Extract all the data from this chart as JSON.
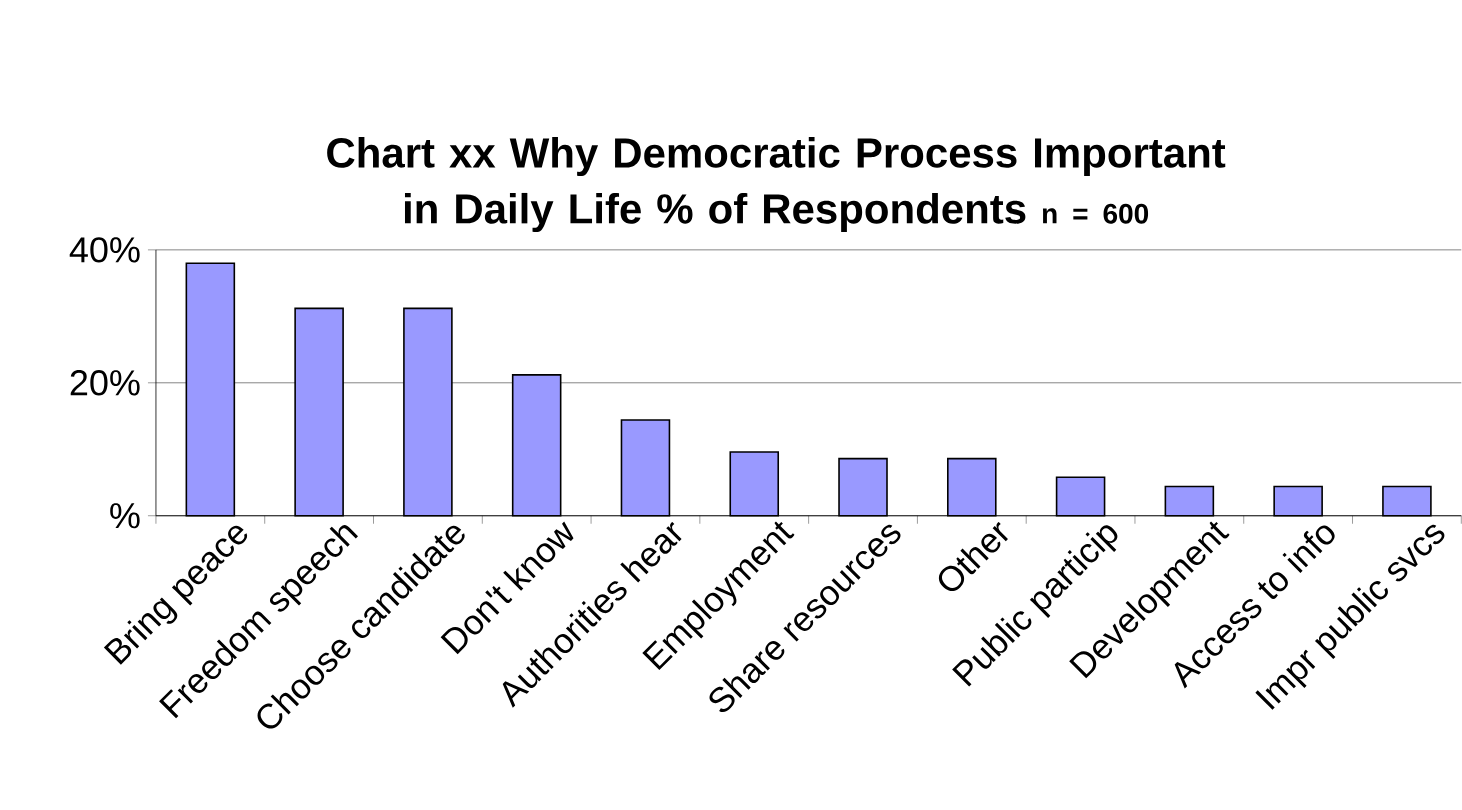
{
  "chart_data": {
    "type": "bar",
    "title": "Chart xx Why Democratic Process Important in Daily Life % of Respondents",
    "subtitle": "n = 600",
    "categories": [
      "Bring peace",
      "Freedom speech",
      "Choose candidate",
      "Don't know",
      "Authorities hear",
      "Employment",
      "Share resources",
      "Other",
      "Public particip",
      "Development",
      "Access to info",
      "Impr public svcs"
    ],
    "values": [
      38.0,
      31.2,
      31.2,
      21.2,
      14.4,
      9.6,
      8.6,
      8.6,
      5.8,
      4.4,
      4.4,
      4.4
    ],
    "color": "#9999ff",
    "ylim": [
      0,
      40
    ],
    "yticks": [
      {
        "value": 0,
        "label": "%"
      },
      {
        "value": 20,
        "label": "20%"
      },
      {
        "value": 40,
        "label": "40%"
      }
    ],
    "grid": "y"
  }
}
